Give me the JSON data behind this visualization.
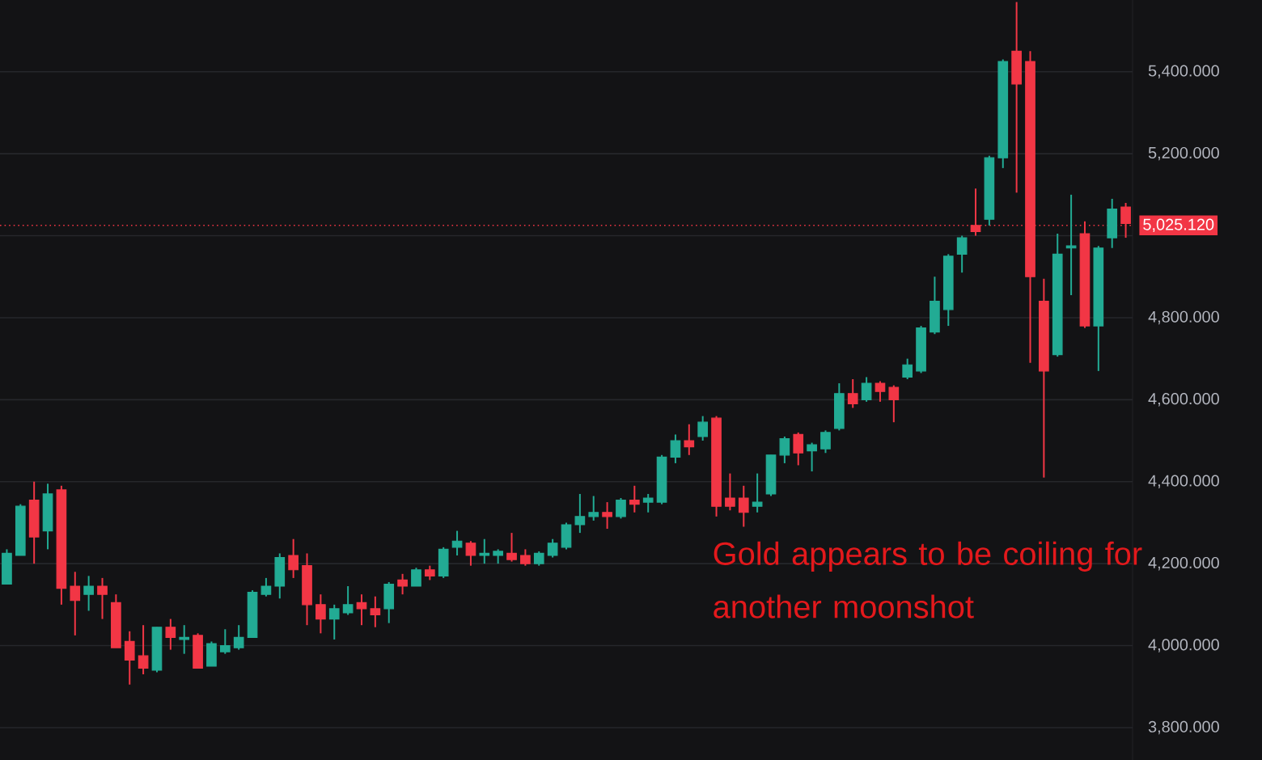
{
  "chart_data": {
    "type": "candlestick",
    "categories": [
      null,
      null,
      null,
      null,
      null,
      null,
      null,
      null,
      null,
      null,
      null,
      null,
      null,
      null,
      null,
      null,
      null,
      null,
      null,
      null,
      null,
      null,
      null,
      null,
      null,
      null,
      null,
      null,
      null,
      null,
      null,
      null,
      null,
      null,
      null,
      null,
      null,
      null,
      null,
      null,
      null,
      null,
      null,
      null,
      null,
      null,
      null,
      null,
      null,
      null,
      null,
      null,
      null,
      null,
      null,
      null,
      null,
      null,
      null,
      null,
      null,
      null,
      null,
      null,
      null,
      null,
      null,
      null,
      null,
      null,
      null,
      null,
      null,
      null,
      null,
      null,
      null,
      null,
      null,
      null,
      null,
      null,
      null
    ],
    "ohlc": [
      [
        4150,
        4235,
        4150,
        4225
      ],
      [
        4220,
        4345,
        4220,
        4340
      ],
      [
        4355,
        4400,
        4200,
        4265
      ],
      [
        4280,
        4395,
        4235,
        4370
      ],
      [
        4380,
        4390,
        4100,
        4140
      ],
      [
        4145,
        4180,
        4025,
        4110
      ],
      [
        4125,
        4170,
        4085,
        4145
      ],
      [
        4145,
        4165,
        4065,
        4125
      ],
      [
        4105,
        4125,
        3995,
        3995
      ],
      [
        4010,
        4035,
        3905,
        3965
      ],
      [
        3975,
        4050,
        3930,
        3945
      ],
      [
        3940,
        4045,
        3935,
        4045
      ],
      [
        4045,
        4065,
        3990,
        4020
      ],
      [
        4015,
        4050,
        3980,
        4020
      ],
      [
        4025,
        4030,
        3945,
        3945
      ],
      [
        3950,
        4010,
        3950,
        4005
      ],
      [
        3985,
        4040,
        3980,
        4000
      ],
      [
        3995,
        4050,
        3990,
        4020
      ],
      [
        4020,
        4135,
        4020,
        4130
      ],
      [
        4125,
        4165,
        4120,
        4145
      ],
      [
        4145,
        4225,
        4115,
        4215
      ],
      [
        4220,
        4260,
        4165,
        4185
      ],
      [
        4195,
        4225,
        4050,
        4100
      ],
      [
        4100,
        4125,
        4030,
        4065
      ],
      [
        4065,
        4100,
        4015,
        4090
      ],
      [
        4080,
        4145,
        4075,
        4100
      ],
      [
        4105,
        4125,
        4050,
        4090
      ],
      [
        4090,
        4120,
        4045,
        4075
      ],
      [
        4090,
        4155,
        4055,
        4150
      ],
      [
        4160,
        4175,
        4125,
        4145
      ],
      [
        4145,
        4190,
        4145,
        4185
      ],
      [
        4185,
        4195,
        4160,
        4170
      ],
      [
        4170,
        4240,
        4165,
        4235
      ],
      [
        4240,
        4280,
        4220,
        4255
      ],
      [
        4250,
        4255,
        4195,
        4220
      ],
      [
        4220,
        4260,
        4200,
        4225
      ],
      [
        4220,
        4235,
        4200,
        4230
      ],
      [
        4225,
        4275,
        4205,
        4210
      ],
      [
        4220,
        4235,
        4195,
        4200
      ],
      [
        4200,
        4230,
        4195,
        4225
      ],
      [
        4220,
        4260,
        4215,
        4250
      ],
      [
        4240,
        4300,
        4235,
        4295
      ],
      [
        4295,
        4370,
        4275,
        4315
      ],
      [
        4315,
        4365,
        4305,
        4325
      ],
      [
        4325,
        4350,
        4285,
        4315
      ],
      [
        4315,
        4360,
        4310,
        4355
      ],
      [
        4355,
        4390,
        4325,
        4345
      ],
      [
        4350,
        4370,
        4325,
        4360
      ],
      [
        4350,
        4465,
        4345,
        4460
      ],
      [
        4460,
        4515,
        4445,
        4500
      ],
      [
        4500,
        4540,
        4465,
        4485
      ],
      [
        4510,
        4560,
        4500,
        4545
      ],
      [
        4555,
        4560,
        4315,
        4340
      ],
      [
        4360,
        4420,
        4330,
        4340
      ],
      [
        4360,
        4390,
        4290,
        4325
      ],
      [
        4340,
        4420,
        4325,
        4350
      ],
      [
        4370,
        4465,
        4365,
        4465
      ],
      [
        4465,
        4510,
        4445,
        4505
      ],
      [
        4515,
        4520,
        4440,
        4470
      ],
      [
        4475,
        4495,
        4425,
        4490
      ],
      [
        4480,
        4525,
        4470,
        4520
      ],
      [
        4530,
        4640,
        4525,
        4615
      ],
      [
        4615,
        4650,
        4580,
        4590
      ],
      [
        4600,
        4655,
        4595,
        4640
      ],
      [
        4640,
        4645,
        4595,
        4620
      ],
      [
        4630,
        4635,
        4545,
        4600
      ],
      [
        4655,
        4700,
        4650,
        4685
      ],
      [
        4670,
        4780,
        4665,
        4775
      ],
      [
        4765,
        4900,
        4760,
        4840
      ],
      [
        4820,
        4955,
        4780,
        4950
      ],
      [
        4955,
        5000,
        4910,
        4995
      ],
      [
        5025,
        5115,
        5000,
        5010
      ],
      [
        5040,
        5195,
        5025,
        5190
      ],
      [
        5190,
        5430,
        5165,
        5425
      ],
      [
        5450,
        5570,
        5105,
        5370
      ],
      [
        5425,
        5450,
        4690,
        4900
      ],
      [
        4840,
        4895,
        4410,
        4670
      ],
      [
        4710,
        5005,
        4705,
        4955
      ],
      [
        4970,
        5100,
        4855,
        4975
      ],
      [
        5005,
        5035,
        4775,
        4780
      ],
      [
        4780,
        4975,
        4670,
        4970
      ],
      [
        4995,
        5090,
        4970,
        5065
      ],
      [
        5070,
        5080,
        4995,
        5030
      ]
    ],
    "ylim": [
      3721,
      5575
    ],
    "yticks": [
      {
        "value": 3800,
        "label": "3,800.000"
      },
      {
        "value": 4000,
        "label": "4,000.000"
      },
      {
        "value": 4200,
        "label": "4,200.000"
      },
      {
        "value": 4400,
        "label": "4,400.000"
      },
      {
        "value": 4600,
        "label": "4,600.000"
      },
      {
        "value": 4800,
        "label": "4,800.000"
      },
      {
        "value": 5000,
        "label": null
      },
      {
        "value": 5200,
        "label": "5,200.000"
      },
      {
        "value": 5400,
        "label": "5,400.000"
      }
    ],
    "grid": "y",
    "tick_labels": "y",
    "ref_lines": [
      {
        "axis": "y",
        "value": 5025.12,
        "label": "5,025.120",
        "color": "#f23645",
        "line_style": "dotted"
      }
    ],
    "annotations": [
      "Gold appears to be coiling for another moonshot"
    ]
  }
}
